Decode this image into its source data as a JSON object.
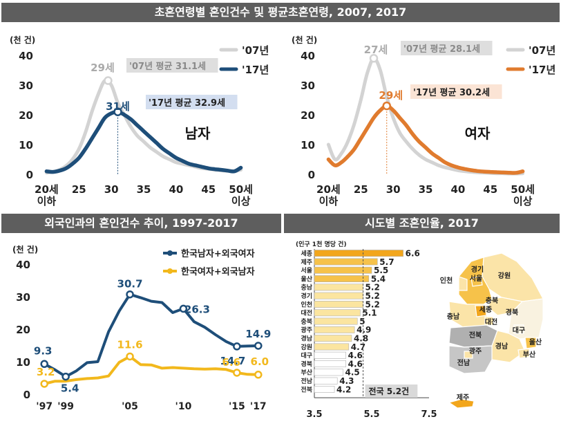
{
  "banners": {
    "top": "초혼연령별 혼인건수 및 평균초혼연령, 2007, 2017",
    "bottom_left": "외국인과의 혼인건수 추이, 1997-2017",
    "bottom_right": "시도별 조혼인율, 2017"
  },
  "colors": {
    "navy": "#1e4e79",
    "gray": "#d3d3d3",
    "orange": "#e07b2e",
    "gold": "#f2b81c",
    "bar_dark": "#f2a61c",
    "bar_mid": "#f6c24a",
    "bar_light": "#fbe5a0",
    "bar_white": "#ffffff"
  },
  "chart_data": [
    {
      "type": "line",
      "panel": "male",
      "ylabel": "(천 건)",
      "ylim": [
        0,
        40
      ],
      "yticks": [
        "0",
        "10",
        "20",
        "30",
        "40"
      ],
      "xlim": [
        19,
        51
      ],
      "xticks": [
        {
          "x": 20,
          "label": "20세",
          "label2": "이하"
        },
        {
          "x": 25,
          "label": "25"
        },
        {
          "x": 30,
          "label": "30"
        },
        {
          "x": 35,
          "label": "35"
        },
        {
          "x": 40,
          "label": "40"
        },
        {
          "x": 45,
          "label": "45"
        },
        {
          "x": 50,
          "label": "50세",
          "label2": "이상"
        }
      ],
      "series": [
        {
          "name": "'07년",
          "color": "gray",
          "x": [
            20,
            21,
            22,
            23,
            24,
            25,
            26,
            27,
            28,
            29,
            30,
            31,
            32,
            33,
            34,
            35,
            36,
            37,
            38,
            39,
            40,
            41,
            42,
            43,
            44,
            45,
            46,
            47,
            48,
            49,
            50
          ],
          "y": [
            0.5,
            0.8,
            1.5,
            2.8,
            5.0,
            8.5,
            14,
            21,
            27,
            31.5,
            30,
            24,
            20,
            16,
            13,
            11,
            9,
            7.5,
            6,
            5,
            4,
            3.5,
            3,
            2.5,
            2,
            1.8,
            1.5,
            1.3,
            1.1,
            1.0,
            1.5
          ]
        },
        {
          "name": "'17년",
          "color": "navy",
          "x": [
            20,
            21,
            22,
            23,
            24,
            25,
            26,
            27,
            28,
            29,
            30,
            31,
            32,
            33,
            34,
            35,
            36,
            37,
            38,
            39,
            40,
            41,
            42,
            43,
            44,
            45,
            46,
            47,
            48,
            49,
            50
          ],
          "y": [
            1,
            0.8,
            1.2,
            2.0,
            3.5,
            5.5,
            8.5,
            12,
            15.5,
            19,
            20.5,
            21,
            20.0,
            18.5,
            16.5,
            14.5,
            12.5,
            10.5,
            8.5,
            7,
            5.5,
            4.5,
            3.5,
            3,
            2.5,
            2,
            1.7,
            1.5,
            1.2,
            1.0,
            2.2
          ]
        }
      ],
      "peaks": [
        {
          "series": "'07년",
          "x": 29.5,
          "y": 31.5,
          "label": "29세",
          "note": "'07년 평균 31.1세"
        },
        {
          "series": "'17년",
          "x": 31,
          "y": 21,
          "label": "31세",
          "note": "'17년 평균 32.9세"
        }
      ],
      "panel_label": "남자"
    },
    {
      "type": "line",
      "panel": "female",
      "ylabel": "(천 건)",
      "ylim": [
        0,
        40
      ],
      "yticks": [
        "0",
        "10",
        "20",
        "30",
        "40"
      ],
      "xlim": [
        19,
        51
      ],
      "xticks": [
        {
          "x": 20,
          "label": "20세",
          "label2": "이하"
        },
        {
          "x": 25,
          "label": "25"
        },
        {
          "x": 30,
          "label": "30"
        },
        {
          "x": 35,
          "label": "35"
        },
        {
          "x": 40,
          "label": "40"
        },
        {
          "x": 45,
          "label": "45"
        },
        {
          "x": 50,
          "label": "50세",
          "label2": "이상"
        }
      ],
      "series": [
        {
          "name": "'07년",
          "color": "gray",
          "x": [
            20,
            21,
            22,
            23,
            24,
            25,
            26,
            27,
            28,
            29,
            30,
            31,
            32,
            33,
            34,
            35,
            36,
            37,
            38,
            39,
            40,
            41,
            42,
            43,
            44,
            45,
            46,
            47,
            48,
            49,
            50
          ],
          "y": [
            10,
            5,
            7,
            11,
            17,
            25,
            34,
            39,
            35,
            26,
            19,
            14,
            11,
            8.5,
            6.5,
            5,
            4,
            3,
            2.3,
            1.8,
            1.3,
            1.0,
            0.8,
            0.6,
            0.5,
            0.4,
            0.3,
            0.3,
            0.2,
            0.2,
            0.3
          ]
        },
        {
          "name": "'17년",
          "color": "orange",
          "x": [
            20,
            21,
            22,
            23,
            24,
            25,
            26,
            27,
            28,
            29,
            30,
            31,
            32,
            33,
            34,
            35,
            36,
            37,
            38,
            39,
            40,
            41,
            42,
            43,
            44,
            45,
            46,
            47,
            48,
            49,
            50
          ],
          "y": [
            5,
            3,
            4,
            6,
            8.5,
            12,
            15.5,
            19,
            21.5,
            23,
            21.5,
            19,
            16.5,
            13.5,
            11,
            9,
            7,
            5.5,
            4,
            3,
            2.3,
            1.8,
            1.4,
            1.1,
            0.9,
            0.8,
            0.7,
            0.6,
            0.5,
            0.5,
            1.0
          ]
        }
      ],
      "peaks": [
        {
          "series": "'07년",
          "x": 27,
          "y": 39,
          "label": "27세",
          "note": "'07년 평균 28.1세"
        },
        {
          "series": "'17년",
          "x": 29,
          "y": 23,
          "label": "29세",
          "note": "'17년 평균 30.2세"
        }
      ],
      "panel_label": "여자"
    },
    {
      "type": "line",
      "panel": "foreign",
      "ylabel": "(천 건)",
      "ylim": [
        0,
        40
      ],
      "yticks": [
        "0",
        "10",
        "20",
        "30",
        "40"
      ],
      "xlim": [
        1996.6,
        2017.4
      ],
      "xticks": [
        {
          "x": 1997,
          "label": "'97"
        },
        {
          "x": 1999,
          "label": "'99"
        },
        {
          "x": 2005,
          "label": "'05"
        },
        {
          "x": 2010,
          "label": "'10"
        },
        {
          "x": 2015,
          "label": "'15"
        },
        {
          "x": 2017,
          "label": "'17"
        }
      ],
      "series": [
        {
          "name": "한국남자+외국여자",
          "color": "navy",
          "x": [
            1997,
            1998,
            1999,
            2000,
            2001,
            2002,
            2003,
            2004,
            2005,
            2006,
            2007,
            2008,
            2009,
            2010,
            2011,
            2012,
            2013,
            2014,
            2015,
            2016,
            2017
          ],
          "y": [
            9.3,
            7.5,
            5.4,
            7.2,
            9.7,
            10.0,
            19.2,
            25.6,
            30.7,
            29.7,
            28.6,
            28.2,
            25.1,
            26.3,
            22.3,
            20.6,
            18.3,
            16.2,
            14.7,
            14.8,
            14.9
          ]
        },
        {
          "name": "한국여자+외국남자",
          "color": "gold",
          "x": [
            1997,
            1998,
            1999,
            2000,
            2001,
            2002,
            2003,
            2004,
            2005,
            2006,
            2007,
            2008,
            2009,
            2010,
            2011,
            2012,
            2013,
            2014,
            2015,
            2016,
            2017
          ],
          "y": [
            3.2,
            4.0,
            4.0,
            4.5,
            4.8,
            5.0,
            5.6,
            9.8,
            11.6,
            9.1,
            9.0,
            8.0,
            8.2,
            8.0,
            7.8,
            7.7,
            7.8,
            7.6,
            6.6,
            6.1,
            6.0
          ]
        }
      ],
      "point_labels": [
        {
          "series": 0,
          "x": 1997,
          "text": "9.3"
        },
        {
          "series": 0,
          "x": 1999,
          "text": "5.4"
        },
        {
          "series": 0,
          "x": 2005,
          "text": "30.7"
        },
        {
          "series": 0,
          "x": 2010,
          "text": "26.3"
        },
        {
          "series": 0,
          "x": 2015,
          "text": "14.7"
        },
        {
          "series": 0,
          "x": 2017,
          "text": "14.9"
        },
        {
          "series": 1,
          "x": 1997,
          "text": "3.2"
        },
        {
          "series": 1,
          "x": 2005,
          "text": "11.6"
        },
        {
          "series": 1,
          "x": 2015,
          "text": "6.6"
        },
        {
          "series": 1,
          "x": 2017,
          "text": "6.0"
        }
      ]
    },
    {
      "type": "bar",
      "orientation": "horizontal",
      "panel": "regional",
      "ylabel": "(인구 1천 명당 건)",
      "xlim": [
        3.5,
        7.5
      ],
      "xticks": [
        "3.5",
        "5.5",
        "7.5"
      ],
      "categories": [
        "세종",
        "제주",
        "서울",
        "울산",
        "충남",
        "경기",
        "인천",
        "대전",
        "충북",
        "광주",
        "경남",
        "강원",
        "대구",
        "경북",
        "부산",
        "전남",
        "전북"
      ],
      "values": [
        6.6,
        5.7,
        5.5,
        5.4,
        5.2,
        5.2,
        5.2,
        5.1,
        5.0,
        4.9,
        4.8,
        4.7,
        4.6,
        4.6,
        4.5,
        4.3,
        4.2
      ],
      "tiers": [
        "dark",
        "mid",
        "mid",
        "mid",
        "light",
        "light",
        "light",
        "light",
        "light",
        "light",
        "light",
        "light",
        "white",
        "white",
        "white",
        "white",
        "white"
      ],
      "reference": {
        "value": 5.2,
        "label": "전국 5.2건"
      }
    }
  ],
  "map": {
    "region_labels": [
      "경기",
      "서울",
      "인천",
      "강원",
      "충북",
      "세종",
      "충남",
      "대전",
      "경북",
      "대구",
      "전북",
      "울산",
      "부산",
      "경남",
      "광주",
      "전남",
      "제주"
    ]
  }
}
